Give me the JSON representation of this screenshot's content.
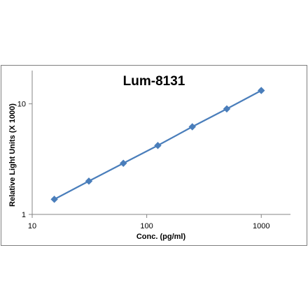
{
  "chart_data": {
    "type": "scatter",
    "title": "Lum-8131",
    "xlabel": "Conc. (pg/ml)",
    "ylabel": "Relative Light Units (X 1000)",
    "x_scale": "log",
    "y_scale": "log",
    "xlim": [
      10,
      1800
    ],
    "ylim": [
      1,
      20
    ],
    "x_ticks": [
      10,
      100,
      1000
    ],
    "x_tick_labels": [
      "10",
      "100",
      "1000"
    ],
    "y_ticks": [
      1,
      10
    ],
    "y_tick_labels": [
      "1",
      "10"
    ],
    "grid": false,
    "legend": "none",
    "line_color": "#4a7ebb",
    "marker_color": "#4a7ebb",
    "marker": "diamond",
    "series": [
      {
        "x": [
          15.6,
          31.25,
          62.5,
          125,
          250,
          500,
          1000
        ],
        "y": [
          1.37,
          2.0,
          2.9,
          4.2,
          6.2,
          9.0,
          13.2
        ]
      }
    ]
  }
}
